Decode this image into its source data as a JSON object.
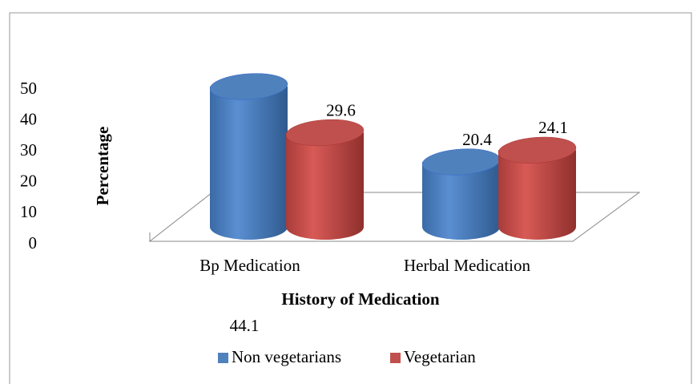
{
  "chart_data": {
    "type": "bar3d",
    "x_label": "History of  Medication",
    "y_label": "Percentage",
    "categories": [
      "Bp Medication",
      "Herbal Medication"
    ],
    "series": [
      {
        "name": "Non vegetarians",
        "color": "#4f81bd",
        "values": [
          44.1,
          20.4
        ]
      },
      {
        "name": "Vegetarian",
        "color": "#c0504d",
        "values": [
          29.6,
          24.1
        ]
      }
    ],
    "ylim": [
      0,
      50
    ],
    "yticks": [
      0,
      10,
      20,
      30,
      40,
      50
    ],
    "legend": "bottom"
  }
}
